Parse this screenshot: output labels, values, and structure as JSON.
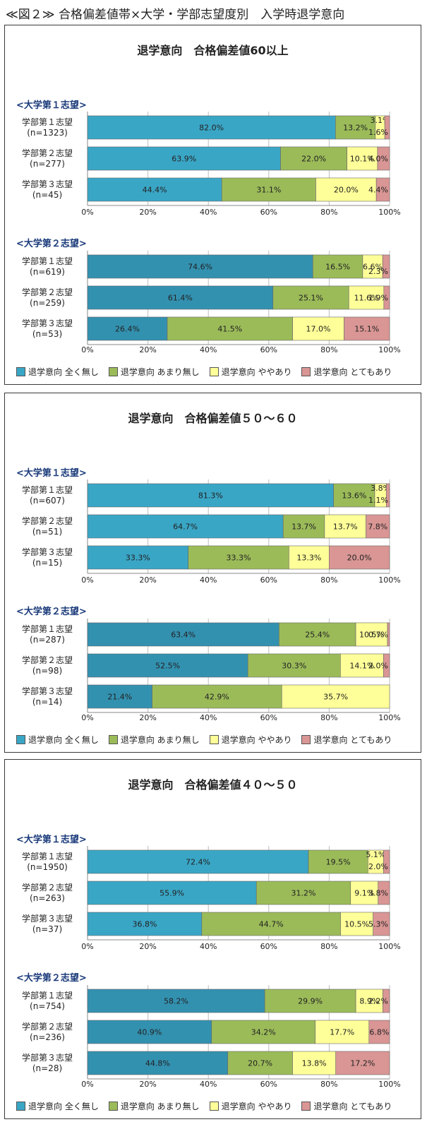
{
  "page_title": "≪図２≫ 合格偏差値帯×大学・学部志望度別　入学時退学意向",
  "legend": [
    {
      "name": "退学意向 全く無し",
      "color": "#3aa6c6"
    },
    {
      "name": "退学意向 あまり無し",
      "color": "#9bbb59"
    },
    {
      "name": "退学意向 ややあり",
      "color": "#ffff99"
    },
    {
      "name": "退学意向 とてもあり",
      "color": "#d99694"
    }
  ],
  "chart_data": [
    {
      "type": "bar",
      "orientation": "horizontal-stacked-100",
      "title": "退学意向　合格偏差値60以上",
      "xlim": [
        0,
        100
      ],
      "x_ticks": [
        "0%",
        "20%",
        "40%",
        "60%",
        "80%",
        "100%"
      ],
      "groups": [
        {
          "label": "<大学第１志望>",
          "categories": [
            {
              "name": "学部第１志望",
              "n": "(n=1323)",
              "values": [
                82.0,
                13.2,
                3.1,
                1.6
              ],
              "labels": [
                "82.0%",
                "13.2%",
                "3.1%",
                "1.6%"
              ]
            },
            {
              "name": "学部第２志望",
              "n": "(n=277)",
              "values": [
                63.9,
                22.0,
                10.1,
                4.0
              ],
              "labels": [
                "63.9%",
                "22.0%",
                "10.1%",
                "4.0%"
              ]
            },
            {
              "name": "学部第３志望",
              "n": "(n=45)",
              "values": [
                44.4,
                31.1,
                20.0,
                4.4
              ],
              "labels": [
                "44.4%",
                "31.1%",
                "20.0%",
                "4.4%"
              ]
            }
          ]
        },
        {
          "label": "<大学第２志望>",
          "categories": [
            {
              "name": "学部第１志望",
              "n": "(n=619)",
              "values": [
                74.6,
                16.5,
                6.6,
                2.3
              ],
              "labels": [
                "74.6%",
                "16.5%",
                "6.6%",
                "2.3%"
              ]
            },
            {
              "name": "学部第２志望",
              "n": "(n=259)",
              "values": [
                61.4,
                25.1,
                11.6,
                1.9
              ],
              "labels": [
                "61.4%",
                "25.1%",
                "11.6%",
                "1.9%"
              ]
            },
            {
              "name": "学部第３志望",
              "n": "(n=53)",
              "values": [
                26.4,
                41.5,
                17.0,
                15.1
              ],
              "labels": [
                "26.4%",
                "41.5%",
                "17.0%",
                "15.1%"
              ]
            }
          ]
        }
      ]
    },
    {
      "type": "bar",
      "orientation": "horizontal-stacked-100",
      "title": "退学意向　合格偏差値５０～６０",
      "xlim": [
        0,
        100
      ],
      "x_ticks": [
        "0%",
        "20%",
        "40%",
        "60%",
        "80%",
        "100%"
      ],
      "groups": [
        {
          "label": "<大学第１志望>",
          "categories": [
            {
              "name": "学部第１志望",
              "n": "(n=607)",
              "values": [
                81.3,
                13.6,
                3.8,
                1.1
              ],
              "labels": [
                "81.3%",
                "13.6%",
                "3.8%",
                "1.1%"
              ]
            },
            {
              "name": "学部第２志望",
              "n": "(n=51)",
              "values": [
                64.7,
                13.7,
                13.7,
                7.8
              ],
              "labels": [
                "64.7%",
                "13.7%",
                "13.7%",
                "7.8%"
              ]
            },
            {
              "name": "学部第３志望",
              "n": "(n=15)",
              "values": [
                33.3,
                33.3,
                13.3,
                20.0
              ],
              "labels": [
                "33.3%",
                "33.3%",
                "13.3%",
                "20.0%"
              ]
            }
          ]
        },
        {
          "label": "<大学第２志望>",
          "categories": [
            {
              "name": "学部第１志望",
              "n": "(n=287)",
              "values": [
                63.4,
                25.4,
                10.5,
                0.7
              ],
              "labels": [
                "63.4%",
                "25.4%",
                "10.5%",
                "0.7%"
              ]
            },
            {
              "name": "学部第２志望",
              "n": "(n=98)",
              "values": [
                52.5,
                30.3,
                14.1,
                2.0
              ],
              "labels": [
                "52.5%",
                "30.3%",
                "14.1%",
                "2.0%"
              ]
            },
            {
              "name": "学部第３志望",
              "n": "(n=14)",
              "values": [
                21.4,
                42.9,
                35.7,
                0
              ],
              "labels": [
                "21.4%",
                "42.9%",
                "35.7%",
                ""
              ]
            }
          ]
        }
      ]
    },
    {
      "type": "bar",
      "orientation": "horizontal-stacked-100",
      "title": "退学意向　合格偏差値４０～５０",
      "xlim": [
        0,
        100
      ],
      "x_ticks": [
        "0%",
        "20%",
        "40%",
        "60%",
        "80%",
        "100%"
      ],
      "groups": [
        {
          "label": "<大学第１志望>",
          "categories": [
            {
              "name": "学部第１志望",
              "n": "(n=1950)",
              "values": [
                72.4,
                19.5,
                5.1,
                2.0
              ],
              "labels": [
                "72.4%",
                "19.5%",
                "5.1%",
                "2.0%"
              ]
            },
            {
              "name": "学部第２志望",
              "n": "(n=263)",
              "values": [
                55.9,
                31.2,
                9.1,
                3.8
              ],
              "labels": [
                "55.9%",
                "31.2%",
                "9.1%",
                "3.8%"
              ]
            },
            {
              "name": "学部第３志望",
              "n": "(n=37)",
              "values": [
                36.8,
                44.7,
                10.5,
                5.3
              ],
              "labels": [
                "36.8%",
                "44.7%",
                "10.5%",
                "5.3%"
              ]
            }
          ]
        },
        {
          "label": "<大学第２志望>",
          "categories": [
            {
              "name": "学部第１志望",
              "n": "(n=754)",
              "values": [
                58.2,
                29.9,
                8.9,
                2.2
              ],
              "labels": [
                "58.2%",
                "29.9%",
                "8.9%",
                "2.2%"
              ]
            },
            {
              "name": "学部第２志望",
              "n": "(n=236)",
              "values": [
                40.9,
                34.2,
                17.7,
                6.8
              ],
              "labels": [
                "40.9%",
                "34.2%",
                "17.7%",
                "6.8%"
              ]
            },
            {
              "name": "学部第３志望",
              "n": "(n=28)",
              "values": [
                44.8,
                20.7,
                13.8,
                17.2
              ],
              "labels": [
                "44.8%",
                "20.7%",
                "13.8%",
                "17.2%"
              ]
            }
          ]
        }
      ]
    }
  ]
}
